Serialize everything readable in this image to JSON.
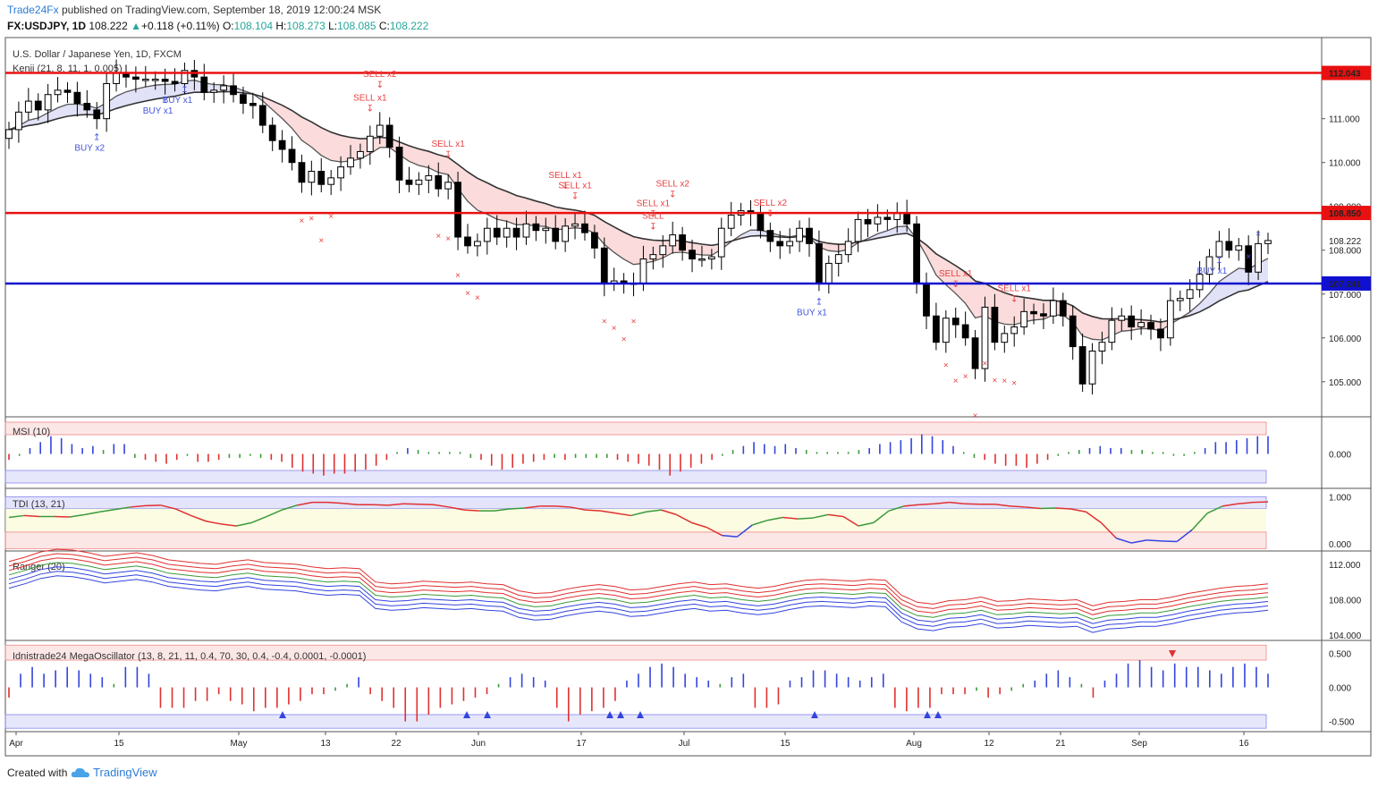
{
  "header": {
    "author": "Trade24Fx",
    "published_text": "published on TradingView.com, September 18, 2019 12:00:24 MSK",
    "symbol": "FX:USDJPY, 1D",
    "last": "108.222",
    "change_arrow": "▲",
    "change": "+0.118 (+0.11%)",
    "o_label": "O:",
    "o": "108.104",
    "h_label": "H:",
    "h": "108.273",
    "l_label": "L:",
    "l": "108.085",
    "c_label": "C:",
    "c": "108.222"
  },
  "footer": {
    "created_with": "Created with",
    "brand": "TradingView",
    "logo_icon": "tradingview-cloud-icon"
  },
  "colors": {
    "bull": "#ffffff",
    "bear": "#000000",
    "resistance": "#e81010",
    "support": "#1010d0",
    "buy": "#4455dd",
    "sell": "#e84040"
  },
  "chart_data": [
    {
      "type": "candlestick",
      "title": "U.S. Dollar / Japanese Yen, 1D, FXCM",
      "indicator_label": "Kenji (21, 8, 11, 1, 0.005)",
      "ylim": [
        104.2,
        112.85
      ],
      "yticks": [
        105.0,
        106.0,
        107.0,
        108.0,
        109.0,
        110.0,
        111.0
      ],
      "ytick_labels": [
        "105.000",
        "106.000",
        "107.000",
        "108.000",
        "109.000",
        "110.000",
        "111.000"
      ],
      "current_label": "108.222",
      "x_labels": [
        "Apr",
        "15",
        "May",
        "13",
        "22",
        "Jun",
        "17",
        "Jul",
        "15",
        "Aug",
        "12",
        "21",
        "Sep",
        "16"
      ],
      "levels": [
        {
          "value": 112.043,
          "label": "112.043",
          "color": "#e81010"
        },
        {
          "value": 108.85,
          "label": "108.850",
          "color": "#e81010"
        },
        {
          "value": 107.241,
          "label": "107.241",
          "color": "#1010d0"
        }
      ],
      "close": [
        110.75,
        111.15,
        111.4,
        111.2,
        111.55,
        111.65,
        111.6,
        111.35,
        111.2,
        111.0,
        111.8,
        112.05,
        111.95,
        111.9,
        111.9,
        111.9,
        111.85,
        111.8,
        112.1,
        111.95,
        111.6,
        111.65,
        111.75,
        111.55,
        111.35,
        111.3,
        110.85,
        110.5,
        110.3,
        110.0,
        109.55,
        109.8,
        109.5,
        109.65,
        109.9,
        110.1,
        110.25,
        110.6,
        110.85,
        110.35,
        109.6,
        109.5,
        109.6,
        109.7,
        109.4,
        109.55,
        108.3,
        108.1,
        108.2,
        108.5,
        108.3,
        108.5,
        108.3,
        108.6,
        108.45,
        108.5,
        108.2,
        108.55,
        108.6,
        108.4,
        108.05,
        107.25,
        107.3,
        107.25,
        107.25,
        107.8,
        107.9,
        108.1,
        108.35,
        108.0,
        107.8,
        107.8,
        107.85,
        108.5,
        108.8,
        108.9,
        108.85,
        108.45,
        108.2,
        108.1,
        108.2,
        108.5,
        108.15,
        107.25,
        107.7,
        107.9,
        108.2,
        108.7,
        108.6,
        108.75,
        108.7,
        108.85,
        108.6,
        107.25,
        106.5,
        105.9,
        106.45,
        106.3,
        106.0,
        105.3,
        106.7,
        105.9,
        106.1,
        106.25,
        106.6,
        106.55,
        106.5,
        106.85,
        106.5,
        105.8,
        104.95,
        105.7,
        105.9,
        106.4,
        106.5,
        106.25,
        106.35,
        106.2,
        106.0,
        106.85,
        106.9,
        107.1,
        107.45,
        107.85,
        108.2,
        108.0,
        108.1,
        107.5,
        108.15,
        108.22
      ],
      "buy_signals": [
        {
          "label": "BUY x2"
        },
        {
          "label": "BUY x1"
        },
        {
          "label": "BUY x1"
        },
        {
          "label": "BUY x1"
        },
        {
          "label": "BUY x1"
        }
      ],
      "sell_signals": [
        {
          "label": "SELL x1"
        },
        {
          "label": "SELL x2"
        },
        {
          "label": "SELL x1"
        },
        {
          "label": "SELL x1"
        },
        {
          "label": "SELL x1"
        },
        {
          "label": "SELL x1"
        },
        {
          "label": "SELL"
        },
        {
          "label": "SELL x2"
        },
        {
          "label": "SELL x2"
        },
        {
          "label": "SELL x1"
        },
        {
          "label": "SELL x1"
        }
      ]
    },
    {
      "type": "histogram",
      "title": "MSI (10)",
      "ytick_labels": [
        "0.000"
      ],
      "values": [
        -0.3,
        -0.1,
        0.3,
        0.6,
        0.9,
        0.8,
        0.5,
        0.3,
        0.4,
        0.2,
        0.5,
        0.5,
        -0.2,
        -0.3,
        -0.4,
        -0.5,
        -0.3,
        -0.1,
        -0.4,
        -0.4,
        -0.3,
        -0.2,
        -0.2,
        -0.1,
        -0.2,
        -0.3,
        -0.4,
        -0.7,
        -0.9,
        -1.0,
        -1.1,
        -1.0,
        -1.0,
        -0.9,
        -0.8,
        -0.6,
        -0.3,
        0.1,
        0.3,
        0.2,
        0.1,
        0.1,
        0.1,
        0.1,
        -0.2,
        -0.3,
        -0.6,
        -0.8,
        -0.7,
        -0.5,
        -0.4,
        -0.3,
        -0.2,
        -0.3,
        -0.2,
        -0.2,
        -0.2,
        -0.2,
        -0.3,
        -0.4,
        -0.5,
        -0.6,
        -0.8,
        -1.1,
        -0.9,
        -0.7,
        -0.5,
        -0.3,
        -0.1,
        0.2,
        0.4,
        0.6,
        0.5,
        0.4,
        0.5,
        0.3,
        0.2,
        0.1,
        0.1,
        0.1,
        0.1,
        0.2,
        0.3,
        0.5,
        0.6,
        0.7,
        0.8,
        1.0,
        0.9,
        0.7,
        0.4,
        0.1,
        -0.2,
        -0.3,
        -0.5,
        -0.6,
        -0.6,
        -0.7,
        -0.5,
        -0.3,
        -0.1,
        0.1,
        0.2,
        0.3,
        0.4,
        0.3,
        0.3,
        0.2,
        0.2,
        0.1,
        0.1,
        -0.1,
        -0.1,
        0.1,
        0.3,
        0.6,
        0.6,
        0.7,
        0.8,
        0.9,
        0.9
      ]
    },
    {
      "type": "line",
      "title": "TDI (13, 21)",
      "ylim": [
        -0.15,
        1.12
      ],
      "ytick_labels": [
        "1.000",
        "0.000"
      ],
      "values": [
        0.56,
        0.6,
        0.58,
        0.58,
        0.57,
        0.62,
        0.68,
        0.73,
        0.78,
        0.81,
        0.82,
        0.74,
        0.6,
        0.48,
        0.42,
        0.38,
        0.45,
        0.58,
        0.72,
        0.82,
        0.88,
        0.88,
        0.86,
        0.83,
        0.83,
        0.82,
        0.85,
        0.84,
        0.83,
        0.78,
        0.72,
        0.7,
        0.7,
        0.74,
        0.76,
        0.8,
        0.8,
        0.78,
        0.72,
        0.7,
        0.65,
        0.6,
        0.68,
        0.72,
        0.62,
        0.45,
        0.35,
        0.18,
        0.15,
        0.4,
        0.5,
        0.56,
        0.53,
        0.55,
        0.62,
        0.58,
        0.38,
        0.45,
        0.7,
        0.8,
        0.83,
        0.85,
        0.88,
        0.85,
        0.84,
        0.84,
        0.8,
        0.78,
        0.75,
        0.76,
        0.74,
        0.68,
        0.45,
        0.12,
        0.02,
        0.08,
        0.06,
        0.05,
        0.3,
        0.65,
        0.8,
        0.85,
        0.88,
        0.89
      ]
    },
    {
      "type": "line",
      "title": "Ranger (20)",
      "ylim": [
        103.4,
        113.2
      ],
      "yticks": [
        104.0,
        108.0,
        112.0
      ],
      "ytick_labels": [
        "104.000",
        "108.000",
        "112.000"
      ],
      "middle": [
        110.8,
        111.3,
        111.9,
        112.2,
        112.1,
        111.8,
        111.4,
        111.6,
        111.8,
        111.5,
        111.0,
        110.8,
        110.6,
        110.5,
        110.8,
        111.0,
        110.7,
        110.6,
        110.5,
        110.2,
        110.0,
        110.1,
        110.0,
        108.5,
        108.3,
        108.4,
        108.6,
        108.5,
        108.4,
        108.5,
        108.3,
        108.2,
        107.5,
        107.2,
        107.3,
        107.7,
        108.0,
        108.2,
        108.0,
        107.6,
        107.7,
        108.0,
        108.3,
        108.5,
        108.2,
        108.3,
        108.0,
        107.8,
        108.0,
        108.4,
        108.7,
        108.8,
        108.7,
        108.6,
        108.8,
        108.7,
        107.0,
        106.2,
        106.0,
        106.4,
        106.5,
        106.8,
        106.3,
        106.4,
        106.6,
        106.5,
        106.4,
        106.5,
        105.8,
        106.2,
        106.3,
        106.5,
        106.5,
        106.8,
        107.2,
        107.5,
        107.8,
        108.0,
        108.1,
        108.3
      ]
    },
    {
      "type": "bar",
      "title": "Idnistrade24 MegaOscillator (13, 8, 21, 11, 0.4, 70, 30, 0.4, -0.4, 0.0001, -0.0001)",
      "ylim": [
        -0.65,
        0.65
      ],
      "yticks": [
        0.5,
        0.0,
        -0.5
      ],
      "ytick_labels": [
        "0.500",
        "0.000",
        "-0.500"
      ],
      "values": [
        -0.15,
        0.2,
        0.3,
        0.2,
        0.25,
        0.3,
        0.25,
        0.2,
        0.15,
        0.05,
        0.3,
        0.3,
        0.2,
        -0.3,
        -0.3,
        -0.3,
        -0.2,
        -0.2,
        -0.1,
        -0.2,
        -0.25,
        -0.35,
        -0.3,
        -0.3,
        -0.25,
        -0.2,
        -0.1,
        -0.1,
        -0.05,
        0.05,
        0.15,
        -0.1,
        -0.2,
        -0.3,
        -0.5,
        -0.5,
        -0.4,
        -0.3,
        -0.25,
        -0.2,
        -0.15,
        -0.1,
        0.05,
        0.15,
        0.2,
        0.15,
        0.1,
        -0.3,
        -0.5,
        -0.4,
        -0.35,
        -0.3,
        -0.2,
        0.1,
        0.2,
        0.3,
        0.35,
        0.3,
        0.2,
        0.15,
        0.1,
        0.05,
        0.15,
        0.2,
        -0.3,
        -0.3,
        -0.25,
        0.1,
        0.15,
        0.25,
        0.25,
        0.2,
        0.15,
        0.1,
        0.15,
        0.2,
        -0.3,
        -0.35,
        -0.3,
        -0.3,
        -0.1,
        -0.1,
        -0.1,
        -0.05,
        -0.15,
        -0.1,
        -0.05,
        0.05,
        0.1,
        0.2,
        0.25,
        0.15,
        0.05,
        -0.15,
        0.1,
        0.2,
        0.35,
        0.4,
        0.3,
        0.25,
        0.35,
        0.3,
        0.3,
        0.25,
        0.2,
        0.3,
        0.35,
        0.3,
        0.2
      ],
      "up_markers": 9,
      "down_markers": 1
    }
  ]
}
